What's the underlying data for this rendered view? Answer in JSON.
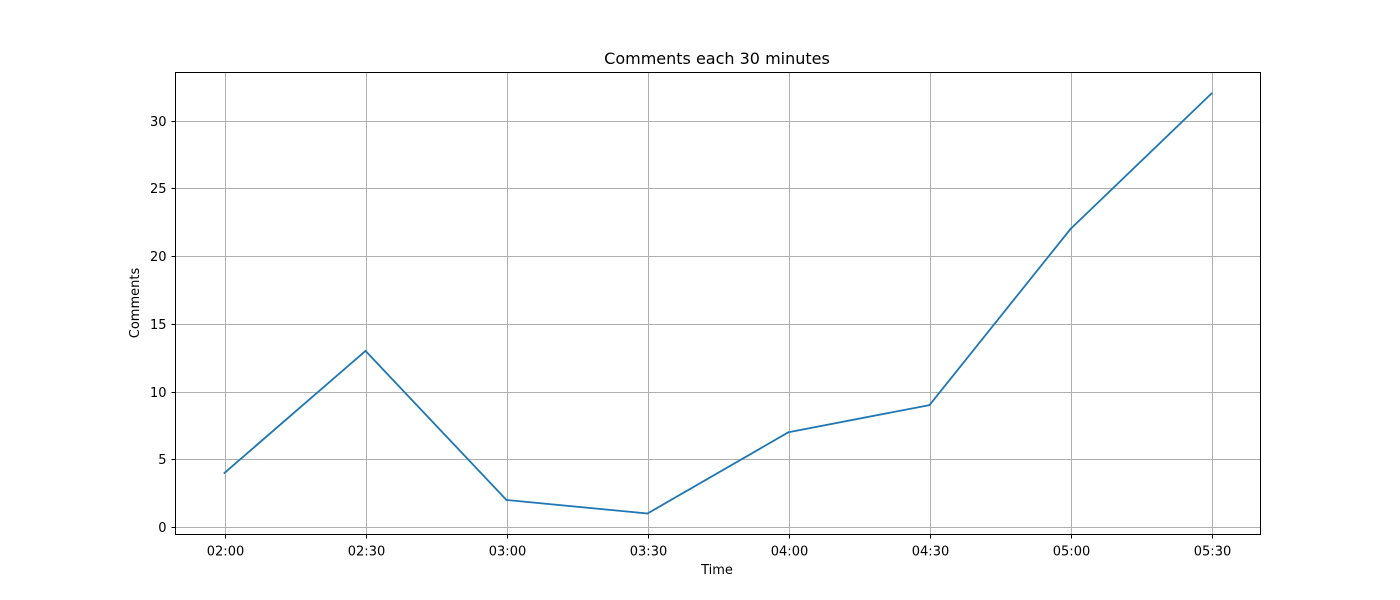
{
  "chart_data": {
    "type": "line",
    "title": "Comments each 30 minutes",
    "xlabel": "Time",
    "ylabel": "Comments",
    "categories": [
      "02:00",
      "02:30",
      "03:00",
      "03:30",
      "04:00",
      "04:30",
      "05:00",
      "05:30"
    ],
    "series": [
      {
        "values": [
          4,
          13,
          2,
          1,
          7,
          9,
          22,
          32
        ]
      }
    ],
    "ylim": [
      -0.55,
      33.55
    ],
    "yticks": [
      0,
      5,
      10,
      15,
      20,
      25,
      30
    ],
    "grid": true,
    "colors": {
      "series": "#1f77b4",
      "grid": "#b0b0b0"
    }
  }
}
